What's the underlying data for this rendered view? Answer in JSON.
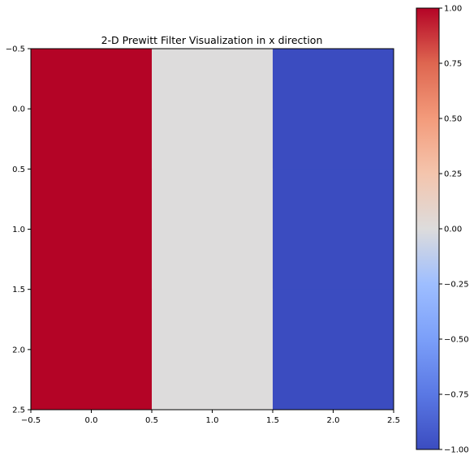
{
  "chart_data": {
    "type": "heatmap",
    "title": "2-D Prewitt Filter Visualization in x direction",
    "xlabel": "",
    "ylabel": "",
    "colormap": "coolwarm",
    "matrix": [
      [
        1,
        0,
        -1
      ],
      [
        1,
        0,
        -1
      ],
      [
        1,
        0,
        -1
      ]
    ],
    "xlim": [
      -0.5,
      2.5
    ],
    "ylim": [
      2.5,
      -0.5
    ],
    "x_ticks": [
      -0.5,
      0.0,
      0.5,
      1.0,
      1.5,
      2.0,
      2.5
    ],
    "x_tick_labels": [
      "−0.5",
      "0.0",
      "0.5",
      "1.0",
      "1.5",
      "2.0",
      "2.5"
    ],
    "y_ticks": [
      -0.5,
      0.0,
      0.5,
      1.0,
      1.5,
      2.0,
      2.5
    ],
    "y_tick_labels": [
      "−0.5",
      "0.0",
      "0.5",
      "1.0",
      "1.5",
      "2.0",
      "2.5"
    ],
    "colorbar": {
      "vmin": -1.0,
      "vmax": 1.0,
      "ticks": [
        1.0,
        0.75,
        0.5,
        0.25,
        0.0,
        -0.25,
        -0.5,
        -0.75,
        -1.0
      ],
      "tick_labels": [
        "1.00",
        "0.75",
        "0.50",
        "0.25",
        "0.00",
        "−0.25",
        "−0.50",
        "−0.75",
        "−1.00"
      ]
    },
    "grid": false
  }
}
